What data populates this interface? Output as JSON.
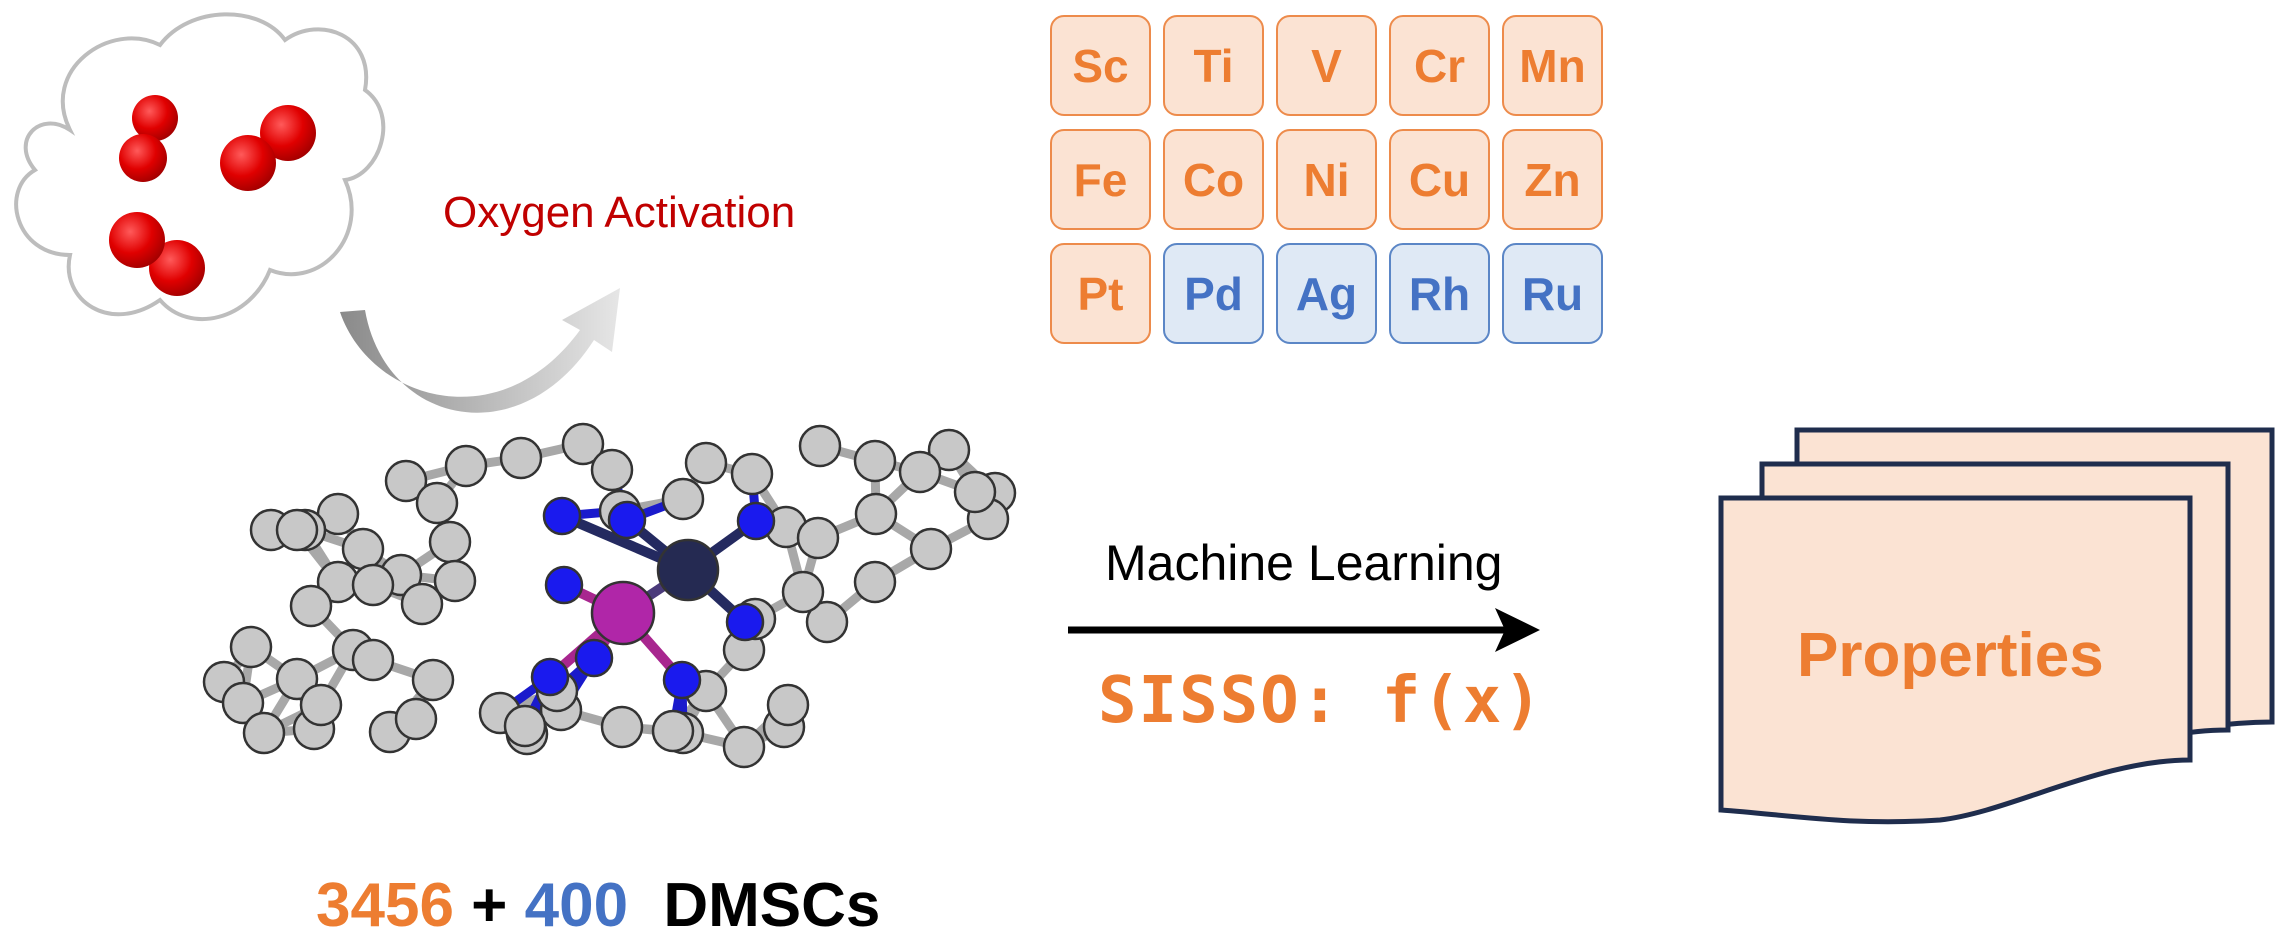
{
  "labels": {
    "oxygen_activation": "Oxygen Activation",
    "machine_learning": "Machine Learning",
    "sisso": "SISSO: f(x)",
    "properties": "Properties"
  },
  "count": {
    "n1": "3456",
    "plus": "+",
    "n2": "400",
    "suffix": "DMSCs"
  },
  "elements": [
    {
      "symbol": "Sc",
      "group": "orange"
    },
    {
      "symbol": "Ti",
      "group": "orange"
    },
    {
      "symbol": "V",
      "group": "orange"
    },
    {
      "symbol": "Cr",
      "group": "orange"
    },
    {
      "symbol": "Mn",
      "group": "orange"
    },
    {
      "symbol": "Fe",
      "group": "orange"
    },
    {
      "symbol": "Co",
      "group": "orange"
    },
    {
      "symbol": "Ni",
      "group": "orange"
    },
    {
      "symbol": "Cu",
      "group": "orange"
    },
    {
      "symbol": "Zn",
      "group": "orange"
    },
    {
      "symbol": "Pt",
      "group": "orange"
    },
    {
      "symbol": "Pd",
      "group": "blue"
    },
    {
      "symbol": "Ag",
      "group": "blue"
    },
    {
      "symbol": "Rh",
      "group": "blue"
    },
    {
      "symbol": "Ru",
      "group": "blue"
    }
  ],
  "colors": {
    "orange": "#ed7d31",
    "blue": "#4472c4",
    "oxygen_red": "#c00000",
    "navy": "#1f2d4d",
    "page_fill": "#fbe3d3",
    "metal_dark": "#252a52",
    "metal_magenta": "#b026a8",
    "nitrogen": "#1a1aee",
    "carbon": "#c8c8c8"
  }
}
